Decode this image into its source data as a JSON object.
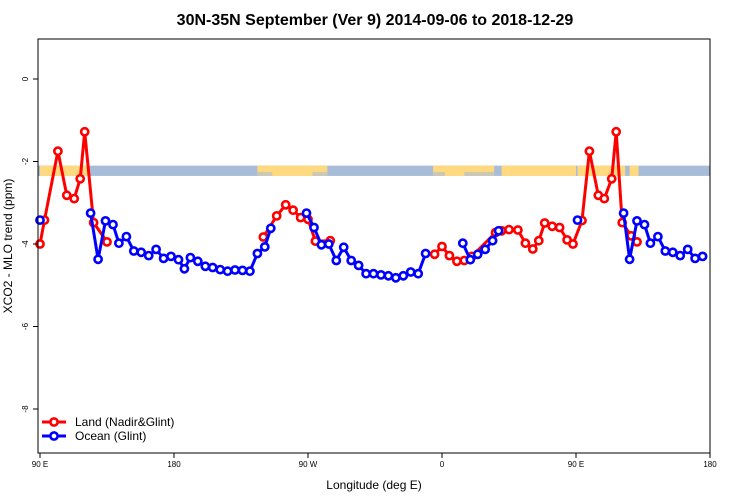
{
  "chart_data": {
    "type": "line",
    "title": "30N-35N September (Ver 9)   2014-09-06 to 2018-12-29",
    "xlabel": "Longitude (deg E)",
    "ylabel": "XCO2 - MLO trend (ppm)",
    "xlim": [
      90,
      540
    ],
    "ylim": [
      -9,
      1
    ],
    "x_ticks": [
      {
        "value": 90,
        "label": "90 E"
      },
      {
        "value": 180,
        "label": "180"
      },
      {
        "value": 270,
        "label": "90 W"
      },
      {
        "value": 360,
        "label": "0"
      },
      {
        "value": 450,
        "label": "90 E"
      },
      {
        "value": 540,
        "label": "180"
      }
    ],
    "y_ticks": [
      {
        "value": 0,
        "label": "0"
      },
      {
        "value": -2,
        "label": "-2"
      },
      {
        "value": -4,
        "label": "-4"
      },
      {
        "value": -6,
        "label": "-6"
      },
      {
        "value": -8,
        "label": "-8"
      }
    ],
    "grid": false,
    "legend_position": "bottom-left",
    "mask_band": {
      "y_top": -2.1,
      "y_bottom": -2.35,
      "land_color": "#ffd980",
      "ocean_color": "#a8bcd8"
    },
    "series": [
      {
        "name": "Land (Nadir&Glint)",
        "color": "#ff0000",
        "segments": [
          [
            [
              90,
              -4.0
            ],
            [
              93,
              -3.42
            ],
            [
              102,
              -1.75
            ],
            [
              108,
              -2.82
            ],
            [
              113,
              -2.9
            ],
            [
              117,
              -2.42
            ],
            [
              120,
              -1.28
            ],
            [
              126,
              -3.48
            ],
            [
              135,
              -3.95
            ]
          ],
          [
            [
              240,
              -3.83
            ],
            [
              249,
              -3.32
            ],
            [
              255,
              -3.05
            ],
            [
              260,
              -3.18
            ],
            [
              265,
              -3.36
            ],
            [
              270,
              -3.4
            ],
            [
              275,
              -3.93
            ],
            [
              285,
              -3.92
            ]
          ],
          [
            [
              355,
              -4.25
            ],
            [
              360,
              -4.06
            ],
            [
              365,
              -4.28
            ],
            [
              370,
              -4.42
            ],
            [
              375,
              -4.4
            ],
            [
              380,
              -4.3
            ],
            [
              396,
              -3.72
            ],
            [
              400,
              -3.68
            ],
            [
              405,
              -3.65
            ],
            [
              411,
              -3.66
            ],
            [
              416,
              -3.98
            ],
            [
              421,
              -4.12
            ],
            [
              425,
              -3.92
            ],
            [
              429,
              -3.49
            ],
            [
              434,
              -3.57
            ],
            [
              439,
              -3.6
            ],
            [
              444,
              -3.9
            ],
            [
              448,
              -4.0
            ],
            [
              454,
              -3.43
            ],
            [
              459,
              -1.75
            ],
            [
              465,
              -2.82
            ],
            [
              469,
              -2.9
            ],
            [
              474,
              -2.42
            ],
            [
              477,
              -1.28
            ],
            [
              481,
              -3.48
            ],
            [
              487,
              -3.8
            ],
            [
              491,
              -3.95
            ]
          ]
        ]
      },
      {
        "name": "Ocean (Glint)",
        "color": "#0000ff",
        "segments": [
          [
            [
              90,
              -3.42
            ]
          ],
          [
            [
              124,
              -3.25
            ],
            [
              129,
              -4.37
            ],
            [
              134,
              -3.44
            ],
            [
              139,
              -3.53
            ],
            [
              143,
              -3.98
            ],
            [
              148,
              -3.82
            ],
            [
              153,
              -4.17
            ],
            [
              158,
              -4.2
            ],
            [
              163,
              -4.28
            ],
            [
              168,
              -4.13
            ],
            [
              173,
              -4.35
            ],
            [
              178,
              -4.3
            ],
            [
              183,
              -4.38
            ],
            [
              187,
              -4.6
            ],
            [
              191,
              -4.33
            ],
            [
              196,
              -4.42
            ],
            [
              201,
              -4.54
            ],
            [
              206,
              -4.57
            ],
            [
              211,
              -4.62
            ],
            [
              216,
              -4.66
            ],
            [
              221,
              -4.63
            ],
            [
              226,
              -4.64
            ],
            [
              231,
              -4.66
            ],
            [
              236,
              -4.23
            ],
            [
              241,
              -4.07
            ],
            [
              245,
              -3.62
            ]
          ],
          [
            [
              269,
              -3.25
            ],
            [
              274,
              -3.6
            ],
            [
              279,
              -4.02
            ],
            [
              284,
              -4.0
            ],
            [
              289,
              -4.4
            ],
            [
              294,
              -4.08
            ],
            [
              299,
              -4.4
            ],
            [
              304,
              -4.52
            ],
            [
              309,
              -4.72
            ],
            [
              314,
              -4.72
            ],
            [
              319,
              -4.75
            ],
            [
              324,
              -4.77
            ],
            [
              329,
              -4.82
            ],
            [
              334,
              -4.77
            ],
            [
              339,
              -4.68
            ],
            [
              344,
              -4.72
            ],
            [
              349,
              -4.23
            ]
          ],
          [
            [
              374,
              -3.98
            ],
            [
              379,
              -4.38
            ],
            [
              384,
              -4.25
            ],
            [
              389,
              -4.13
            ],
            [
              394,
              -3.92
            ],
            [
              398,
              -3.68
            ]
          ],
          [
            [
              451,
              -3.42
            ]
          ],
          [
            [
              482,
              -3.25
            ],
            [
              486,
              -4.37
            ],
            [
              491,
              -3.44
            ],
            [
              496,
              -3.53
            ],
            [
              500,
              -3.98
            ],
            [
              505,
              -3.82
            ],
            [
              510,
              -4.17
            ],
            [
              515,
              -4.2
            ],
            [
              520,
              -4.28
            ],
            [
              525,
              -4.13
            ],
            [
              530,
              -4.35
            ],
            [
              535,
              -4.3
            ]
          ]
        ]
      }
    ]
  }
}
